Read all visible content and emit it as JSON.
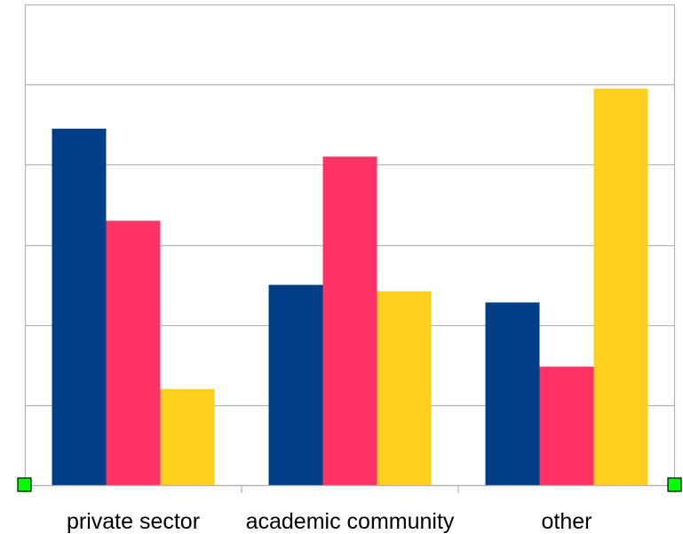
{
  "chart_data": {
    "type": "bar",
    "categories": [
      "private sector",
      "academic community",
      "other"
    ],
    "series": [
      {
        "values": [
          4.45,
          2.5,
          2.28
        ],
        "color": "#003F87"
      },
      {
        "values": [
          3.3,
          4.1,
          1.48
        ],
        "color": "#FF3366"
      },
      {
        "values": [
          1.2,
          2.42,
          4.95
        ],
        "color": "#FFD020"
      }
    ],
    "ylim": [
      0,
      6
    ],
    "grid": true,
    "legend": "none",
    "title": "",
    "xlabel": "",
    "ylabel": "",
    "selection_handle_color": "#00FF00"
  }
}
